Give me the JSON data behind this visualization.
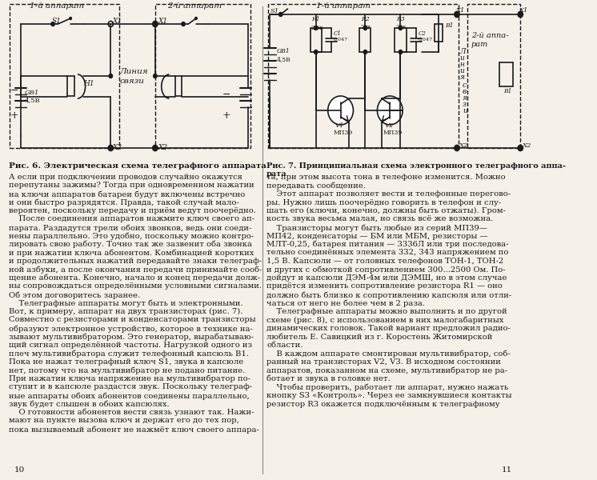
{
  "page_bg": "#f5f0e8",
  "text_color": "#1a1a1a",
  "fig6_caption": "Рис. 6. Электрическая схема телеграфного аппарата",
  "fig7_caption": "Рис. 7. Принципиальная схема электронного телеграфного аппа-\nрата",
  "page_left": "10",
  "page_right": "11",
  "left_text": "А если при подключении проводов случайно окажутся\nперепутаны зажимы? Тогда при одновременном нажатии\nна ключи аппаратов батареи будут включены встречно\nи они быстро разрядятся. Правда, такой случай мало-\nвероятен, поскольку передачу и приём ведут поочерёдно.\n    После соединения аппаратов нажмите ключ своего ап-\nпарата. Раздадутся трели обоих звонков, ведь они соеди-\nнены параллельно. Это удобно, поскольку можно контро-\nлировать свою работу. Точно так же зазвенит оба звонка\nи при нажатии ключа абонентом. Комбинацией коротких\nи продолжительных нажатий передавайте знаки телеграф-\nной азбуки, а после окончания передачи принимайте сооб-\nщение абонента. Конечно, начало и конец передачи долж-\nны сопровождаться определёнными условными сигналами.\nОб этом договоритесь заранее.\n    Телеграфные аппараты могут быть и электронными.\nВот, к примеру, аппарат на двух транзисторах (рис. 7).\nСовместно с резисторами и конденсаторами транзисторы\nобразуют электронное устройство, которое в технике на-\nзывают мультивибратором. Это генератор, вырабатываю-\nщий сигнал определённой частоты. Нагрузкой одного из\nплеч мультивибратора служит телефонный капсюль В1.\nПока не нажат телеграфный ключ S1, звука в капсюле\nнет, потому что на мультивибратор не подано питание.\nПри нажатии ключа напряжение на мультивибратор по-\nступит и в капсюле раздастся звук. Поскольку телеграф-\nные аппараты обоих абонентов соединены параллельно,\nзвук будет слышен в обоих капсюлях.\n    О готовности абонентов вести связь узнают так. Нажи-\nмают на пункте вызова ключ и держат его до тех пор,\nпока вызываемый абонент не нажмёт ключ своего аппара-",
  "right_text": "та, при этом высота тона в телефоне изменится. Можно\nпередавать сообщение.\n    Этот аппарат позволяет вести и телефонные перегово-\nры. Нужно лишь поочерёдно говорить в телефон и слу-\nшать его (ключи, конечно, должны быть отжаты). Гром-\nкость звука весьма малая, но связь всё же возможна.\n    Транзисторы могут быть любые из серий МП39—\nМП42, конденсаторы — БМ или МБМ, резисторы —\nМЛТ-0,25, батарея питания — 3336Л или три последова-\nтельно соединённых элемента 332, 343 напряжением по\n1,5 В. Капсюли — от головных телефонов ТОН-1, ТОН-2\nи других с обмоткой сопротивлением 300...2500 Ом. По-\nдойдут и капсюли ДЭМ-4м или ДЭМШ, но в этом случае\nпридётся изменить сопротивление резистора R1 — оно\nдолжно быть близко к сопротивлению капсюля или отли-\nчаться от него не более чем в 2 раза.\n    Телеграфные аппараты можно выполнить и по другой\nсхеме (рис. 8), с использованием в них малогабаритных\nдинамических головок. Такой вариант предложил радио-\nлюбитель Е. Савицкий из г. Коростень Житомирской\nобласти.\n    В каждом аппарате смонтирован мультивибратор, соб-\nранный на транзисторах V2, V3. В исходном состоянии\nаппаратов, показанном на схеме, мультивибратор не ра-\nботает и звука в головке нет.\n    Чтобы проверить, работает ли аппарат, нужно нажать\nкнопку S3 «Контроль». Через ее замкнувшиеся контакты\nрезистор R3 окажется подключённым к телеграфному"
}
